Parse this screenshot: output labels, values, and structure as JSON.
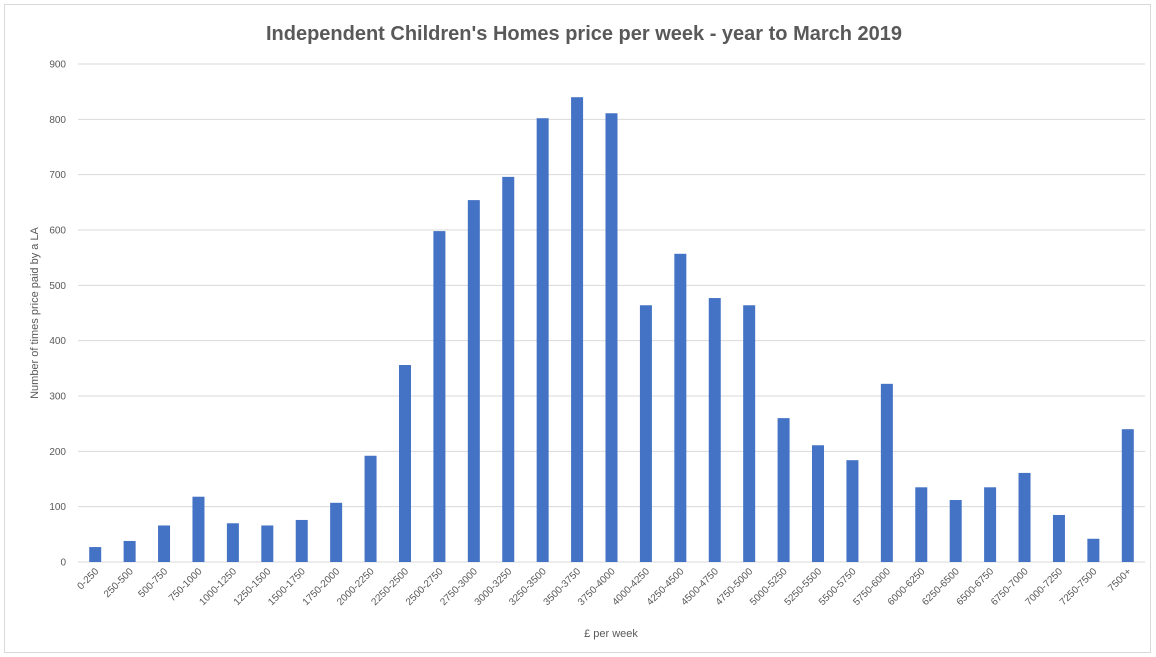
{
  "chart_data": {
    "type": "bar",
    "title": "Independent Children's Homes price per week - year to March 2019",
    "xlabel": "£ per week",
    "ylabel": "Number of times price paid by a LA",
    "categories": [
      "0-250",
      "250-500",
      "500-750",
      "750-1000",
      "1000-1250",
      "1250-1500",
      "1500-1750",
      "1750-2000",
      "2000-2250",
      "2250-2500",
      "2500-2750",
      "2750-3000",
      "3000-3250",
      "3250-3500",
      "3500-3750",
      "3750-4000",
      "4000-4250",
      "4250-4500",
      "4500-4750",
      "4750-5000",
      "5000-5250",
      "5250-5500",
      "5500-5750",
      "5750-6000",
      "6000-6250",
      "6250-6500",
      "6500-6750",
      "6750-7000",
      "7000-7250",
      "7250-7500",
      "7500+"
    ],
    "values": [
      27,
      38,
      66,
      118,
      70,
      66,
      76,
      107,
      192,
      356,
      598,
      654,
      696,
      802,
      840,
      811,
      464,
      557,
      477,
      464,
      260,
      211,
      184,
      322,
      135,
      112,
      135,
      161,
      85,
      42,
      240
    ],
    "color": "#4472c4",
    "ylim": [
      0,
      900
    ],
    "yticks": [
      0,
      100,
      200,
      300,
      400,
      500,
      600,
      700,
      800,
      900
    ],
    "grid": true
  }
}
